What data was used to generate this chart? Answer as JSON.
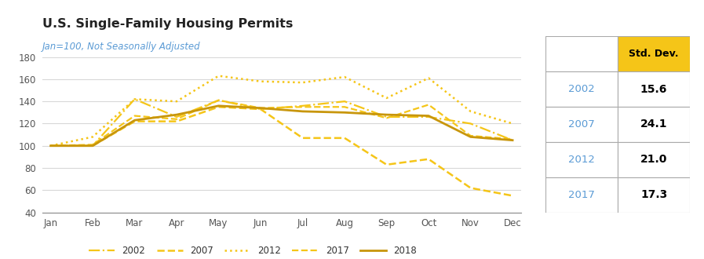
{
  "title": "U.S. Single-Family Housing Permits",
  "subtitle": "Jan=100, Not Seasonally Adjusted",
  "months": [
    "Jan",
    "Feb",
    "Mar",
    "Apr",
    "May",
    "Jun",
    "Jul",
    "Aug",
    "Sep",
    "Oct",
    "Nov",
    "Dec"
  ],
  "series_order": [
    "2002",
    "2007",
    "2012",
    "2017",
    "2018"
  ],
  "series": {
    "2002": [
      100,
      100,
      142,
      126,
      141,
      133,
      136,
      140,
      126,
      126,
      120,
      105
    ],
    "2007": [
      100,
      100,
      122,
      122,
      135,
      133,
      107,
      107,
      83,
      88,
      62,
      55
    ],
    "2012": [
      100,
      108,
      142,
      140,
      163,
      158,
      157,
      162,
      143,
      161,
      131,
      120
    ],
    "2017": [
      100,
      101,
      127,
      124,
      141,
      134,
      135,
      135,
      125,
      137,
      109,
      106
    ],
    "2018": [
      100,
      100,
      123,
      128,
      136,
      134,
      131,
      130,
      128,
      127,
      108,
      105
    ]
  },
  "line_styles": {
    "2002": {
      "color": "#F5C518",
      "linestyle": "-.",
      "linewidth": 1.6
    },
    "2007": {
      "color": "#F5C518",
      "linestyle": "--",
      "linewidth": 1.8
    },
    "2012": {
      "color": "#F5C518",
      "linestyle": ":",
      "linewidth": 1.8
    },
    "2017": {
      "color": "#F5C518",
      "linestyle": "--",
      "linewidth": 1.6
    },
    "2018": {
      "color": "#C8960C",
      "linestyle": "-",
      "linewidth": 2.0
    }
  },
  "ylim": [
    40,
    180
  ],
  "yticks": [
    40,
    60,
    80,
    100,
    120,
    140,
    160,
    180
  ],
  "background_color": "#ffffff",
  "grid_color": "#d8d8d8",
  "table_data": {
    "years": [
      "2002",
      "2007",
      "2012",
      "2017"
    ],
    "values": [
      "15.6",
      "24.1",
      "21.0",
      "17.3"
    ],
    "header": "Std. Dev.",
    "header_bg": "#F5C518"
  },
  "title_color": "#222222",
  "subtitle_color": "#5b9bd5",
  "tick_color": "#555555"
}
